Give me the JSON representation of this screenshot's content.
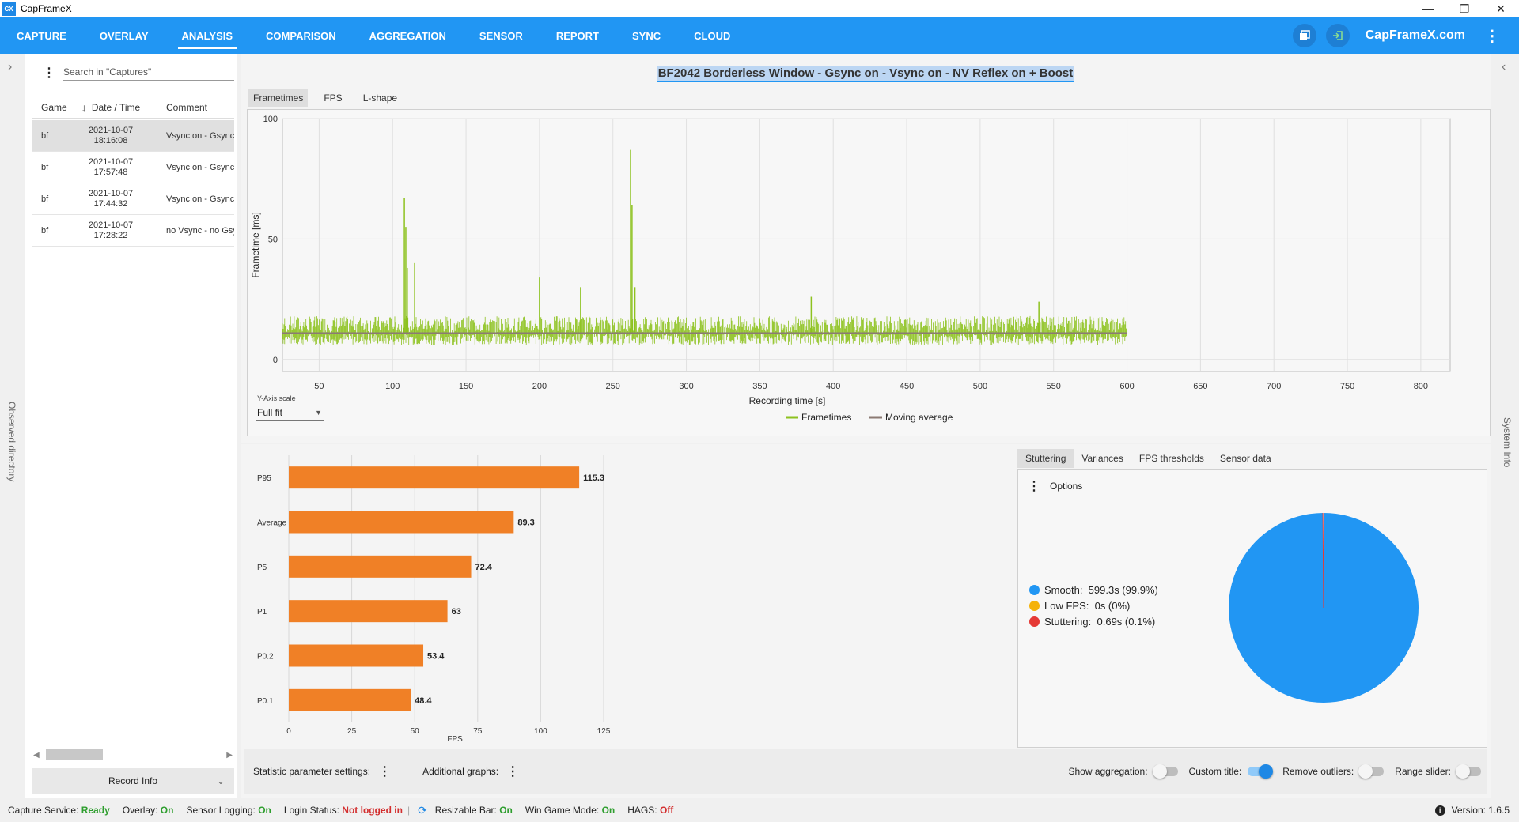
{
  "app": {
    "title": "CapFrameX",
    "logo_text": "CX"
  },
  "window_controls": {
    "minimize": "—",
    "restore": "❐",
    "close": "✕"
  },
  "nav": {
    "tabs": [
      "CAPTURE",
      "OVERLAY",
      "ANALYSIS",
      "COMPARISON",
      "AGGREGATION",
      "SENSOR",
      "REPORT",
      "SYNC",
      "CLOUD"
    ],
    "active_tab": "ANALYSIS",
    "site_link": "CapFrameX.com"
  },
  "left_strip": {
    "label": "Observed directory",
    "chevron": "›"
  },
  "right_strip": {
    "label": "System Info",
    "chevron": "‹"
  },
  "sidebar": {
    "search_placeholder": "Search in \"Captures\"",
    "columns": {
      "game": "Game",
      "datetime": "Date / Time",
      "comment": "Comment"
    },
    "rows": [
      {
        "game": "bf",
        "date": "2021-10-07",
        "time": "18:16:08",
        "comment": "Vsync on - Gsync on",
        "selected": true
      },
      {
        "game": "bf",
        "date": "2021-10-07",
        "time": "17:57:48",
        "comment": "Vsync on - Gsync on",
        "selected": false
      },
      {
        "game": "bf",
        "date": "2021-10-07",
        "time": "17:44:32",
        "comment": "Vsync on - Gsync on",
        "selected": false
      },
      {
        "game": "bf",
        "date": "2021-10-07",
        "time": "17:28:22",
        "comment": "no Vsync - no Gsync",
        "selected": false
      }
    ],
    "record_info": "Record Info"
  },
  "analysis": {
    "title": "BF2042 Borderless Window - Gsync on - Vsync on - NV Reflex on + Boost",
    "tabs": [
      "Frametimes",
      "FPS",
      "L-shape"
    ],
    "y_axis_scale_label": "Y-Axis scale",
    "y_axis_scale_value": "Full fit"
  },
  "chart_data": [
    {
      "type": "line",
      "title": "",
      "xlabel": "Recording time [s]",
      "ylabel": "Frametime [ms]",
      "xlim": [
        25,
        820
      ],
      "ylim": [
        -5,
        100
      ],
      "x_ticks": [
        50,
        100,
        150,
        200,
        250,
        300,
        350,
        400,
        450,
        500,
        550,
        600,
        650,
        700,
        750,
        800
      ],
      "y_ticks": [
        0,
        50,
        100
      ],
      "grid": true,
      "legend_position": "bottom",
      "series": [
        {
          "name": "Frametimes",
          "color": "#8dc21f",
          "x_range": [
            25,
            600
          ],
          "baseline": 11,
          "band_low": 6,
          "band_high": 18,
          "spikes": [
            [
              108,
              67
            ],
            [
              109,
              55
            ],
            [
              110,
              38
            ],
            [
              115,
              40
            ],
            [
              200,
              34
            ],
            [
              228,
              30
            ],
            [
              262,
              87
            ],
            [
              263,
              64
            ],
            [
              265,
              30
            ],
            [
              385,
              26
            ],
            [
              540,
              24
            ]
          ]
        },
        {
          "name": "Moving average",
          "color": "#8b7a73",
          "x_range": [
            25,
            600
          ],
          "value": 11
        }
      ]
    },
    {
      "type": "bar",
      "orientation": "horizontal",
      "xlabel": "FPS",
      "xlim": [
        0,
        125
      ],
      "x_ticks": [
        0,
        25,
        50,
        75,
        100,
        125
      ],
      "color": "#f08026",
      "categories": [
        "P95",
        "Average",
        "P5",
        "P1",
        "P0.2",
        "P0.1"
      ],
      "values": [
        115.3,
        89.3,
        72.4,
        63,
        53.4,
        48.4
      ]
    },
    {
      "type": "pie",
      "categories": [
        "Smooth",
        "Low FPS",
        "Stuttering"
      ],
      "values": [
        599.3,
        0,
        0.69
      ],
      "labels": [
        "599.3s (99.9%)",
        "0s (0%)",
        "0.69s (0.1%)"
      ],
      "colors": [
        "#2196f3",
        "#f5b20a",
        "#e53935"
      ]
    }
  ],
  "stuttering": {
    "tabs": [
      "Stuttering",
      "Variances",
      "FPS thresholds",
      "Sensor data"
    ],
    "options_label": "Options"
  },
  "bottom_bar": {
    "statistic_label": "Statistic parameter settings:",
    "graphs_label": "Additional graphs:",
    "toggles": [
      {
        "label": "Show aggregation:",
        "on": false
      },
      {
        "label": "Custom title:",
        "on": true
      },
      {
        "label": "Remove outliers:",
        "on": false
      },
      {
        "label": "Range slider:",
        "on": false
      }
    ]
  },
  "status": {
    "capture_service_label": "Capture Service:",
    "capture_service_value": "Ready",
    "overlay_label": "Overlay:",
    "overlay_value": "On",
    "sensor_label": "Sensor Logging:",
    "sensor_value": "On",
    "login_label": "Login Status:",
    "login_value": "Not logged in",
    "resizable_label": "Resizable Bar:",
    "resizable_value": "On",
    "gamemode_label": "Win Game Mode:",
    "gamemode_value": "On",
    "hags_label": "HAGS:",
    "hags_value": "Off",
    "version_label": "Version:",
    "version_value": "1.6.5"
  }
}
